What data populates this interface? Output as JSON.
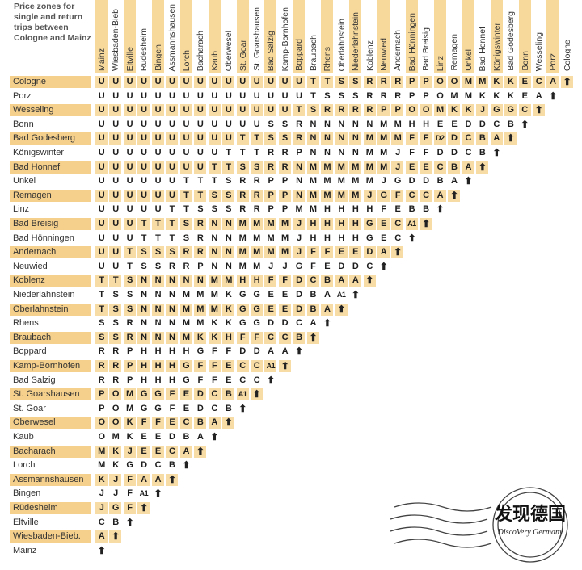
{
  "caption": "Price zones for single and return trips between Cologne and Mainz",
  "columns": [
    "Mainz",
    "Wiesbaden-Bieb",
    "Eltville",
    "Rüdesheim",
    "Bingen",
    "Assmannshausen",
    "Lorch",
    "Bacharach",
    "Kaub",
    "Oberwesel",
    "St. Goar",
    "St. Goarshausen",
    "Bad Salzig",
    "Kamp-Bornhofen",
    "Boppard",
    "Braubach",
    "Rhens",
    "Oberlahnstein",
    "Niederlahnstein",
    "Koblenz",
    "Neuwied",
    "Andernach",
    "Bad Hönningen",
    "Bad Breisig",
    "Linz",
    "Remagen",
    "Unkel",
    "Bad Honnef",
    "Königswinter",
    "Bad Godesberg",
    "Bonn",
    "Wesseling",
    "Porz",
    "Cologne"
  ],
  "terminal_icon": "arrow-up-icon",
  "colors": {
    "row_shade": "#f5d08c",
    "cell_shade": "#f8dca6",
    "column_shade": "#f7d99c"
  },
  "rows": [
    {
      "name": "Cologne",
      "zones": [
        "U",
        "U",
        "U",
        "U",
        "U",
        "U",
        "U",
        "U",
        "U",
        "U",
        "U",
        "U",
        "U",
        "U",
        "U",
        "T",
        "T",
        "S",
        "S",
        "R",
        "R",
        "R",
        "P",
        "P",
        "O",
        "O",
        "M",
        "M",
        "K",
        "K",
        "E",
        "C",
        "A"
      ]
    },
    {
      "name": "Porz",
      "zones": [
        "U",
        "U",
        "U",
        "U",
        "U",
        "U",
        "U",
        "U",
        "U",
        "U",
        "U",
        "U",
        "U",
        "U",
        "U",
        "T",
        "S",
        "S",
        "S",
        "R",
        "R",
        "R",
        "P",
        "P",
        "O",
        "M",
        "M",
        "K",
        "K",
        "K",
        "E",
        "A"
      ]
    },
    {
      "name": "Wesseling",
      "zones": [
        "U",
        "U",
        "U",
        "U",
        "U",
        "U",
        "U",
        "U",
        "U",
        "U",
        "U",
        "U",
        "U",
        "U",
        "T",
        "S",
        "R",
        "R",
        "R",
        "R",
        "P",
        "P",
        "O",
        "O",
        "M",
        "K",
        "K",
        "J",
        "G",
        "G",
        "C"
      ]
    },
    {
      "name": "Bonn",
      "zones": [
        "U",
        "U",
        "U",
        "U",
        "U",
        "U",
        "U",
        "U",
        "U",
        "U",
        "U",
        "U",
        "S",
        "S",
        "R",
        "N",
        "N",
        "N",
        "N",
        "N",
        "M",
        "M",
        "H",
        "H",
        "E",
        "E",
        "D",
        "D",
        "C",
        "B"
      ]
    },
    {
      "name": "Bad Godesberg",
      "zones": [
        "U",
        "U",
        "U",
        "U",
        "U",
        "U",
        "U",
        "U",
        "U",
        "U",
        "T",
        "T",
        "S",
        "S",
        "R",
        "N",
        "N",
        "N",
        "N",
        "M",
        "M",
        "M",
        "F",
        "F",
        "D2",
        "D",
        "C",
        "B",
        "A"
      ]
    },
    {
      "name": "Königswinter",
      "zones": [
        "U",
        "U",
        "U",
        "U",
        "U",
        "U",
        "U",
        "U",
        "U",
        "T",
        "T",
        "T",
        "R",
        "R",
        "P",
        "N",
        "N",
        "N",
        "N",
        "M",
        "M",
        "J",
        "F",
        "F",
        "D",
        "D",
        "C",
        "B"
      ]
    },
    {
      "name": "Bad Honnef",
      "zones": [
        "U",
        "U",
        "U",
        "U",
        "U",
        "U",
        "U",
        "U",
        "T",
        "T",
        "S",
        "S",
        "R",
        "R",
        "N",
        "M",
        "M",
        "M",
        "M",
        "M",
        "M",
        "J",
        "E",
        "E",
        "C",
        "B",
        "A"
      ]
    },
    {
      "name": "Unkel",
      "zones": [
        "U",
        "U",
        "U",
        "U",
        "U",
        "U",
        "T",
        "T",
        "T",
        "S",
        "R",
        "R",
        "P",
        "P",
        "N",
        "M",
        "M",
        "M",
        "M",
        "M",
        "J",
        "G",
        "D",
        "D",
        "B",
        "A"
      ]
    },
    {
      "name": "Remagen",
      "zones": [
        "U",
        "U",
        "U",
        "U",
        "U",
        "U",
        "T",
        "T",
        "S",
        "S",
        "R",
        "R",
        "P",
        "P",
        "N",
        "M",
        "M",
        "M",
        "M",
        "J",
        "G",
        "F",
        "C",
        "C",
        "A"
      ]
    },
    {
      "name": "Linz",
      "zones": [
        "U",
        "U",
        "U",
        "U",
        "U",
        "T",
        "T",
        "S",
        "S",
        "S",
        "R",
        "R",
        "P",
        "P",
        "M",
        "M",
        "H",
        "H",
        "H",
        "H",
        "F",
        "E",
        "B",
        "B"
      ]
    },
    {
      "name": "Bad Breisig",
      "zones": [
        "U",
        "U",
        "U",
        "T",
        "T",
        "T",
        "S",
        "R",
        "N",
        "N",
        "M",
        "M",
        "M",
        "M",
        "J",
        "H",
        "H",
        "H",
        "H",
        "G",
        "E",
        "C",
        "A1"
      ]
    },
    {
      "name": "Bad Hönningen",
      "zones": [
        "U",
        "U",
        "U",
        "T",
        "T",
        "T",
        "S",
        "R",
        "N",
        "N",
        "M",
        "M",
        "M",
        "M",
        "J",
        "H",
        "H",
        "H",
        "H",
        "G",
        "E",
        "C"
      ]
    },
    {
      "name": "Andernach",
      "zones": [
        "U",
        "U",
        "T",
        "S",
        "S",
        "S",
        "R",
        "R",
        "N",
        "N",
        "M",
        "M",
        "M",
        "M",
        "J",
        "F",
        "F",
        "E",
        "E",
        "D",
        "A"
      ]
    },
    {
      "name": "Neuwied",
      "zones": [
        "U",
        "U",
        "T",
        "S",
        "S",
        "R",
        "R",
        "P",
        "N",
        "N",
        "M",
        "M",
        "J",
        "J",
        "G",
        "F",
        "E",
        "D",
        "D",
        "C"
      ]
    },
    {
      "name": "Koblenz",
      "zones": [
        "T",
        "T",
        "S",
        "N",
        "N",
        "N",
        "N",
        "N",
        "M",
        "M",
        "H",
        "H",
        "F",
        "F",
        "D",
        "C",
        "B",
        "A",
        "A"
      ]
    },
    {
      "name": "Niederlahnstein",
      "zones": [
        "T",
        "S",
        "S",
        "N",
        "N",
        "N",
        "M",
        "M",
        "M",
        "K",
        "G",
        "G",
        "E",
        "E",
        "D",
        "B",
        "A",
        "A1"
      ]
    },
    {
      "name": "Oberlahnstein",
      "zones": [
        "T",
        "S",
        "S",
        "N",
        "N",
        "N",
        "M",
        "M",
        "M",
        "K",
        "G",
        "G",
        "E",
        "E",
        "D",
        "B",
        "A"
      ]
    },
    {
      "name": "Rhens",
      "zones": [
        "S",
        "S",
        "R",
        "N",
        "N",
        "N",
        "M",
        "M",
        "K",
        "K",
        "G",
        "G",
        "D",
        "D",
        "C",
        "A"
      ]
    },
    {
      "name": "Braubach",
      "zones": [
        "S",
        "S",
        "R",
        "N",
        "N",
        "N",
        "M",
        "K",
        "K",
        "H",
        "F",
        "F",
        "C",
        "C",
        "B"
      ]
    },
    {
      "name": "Boppard",
      "zones": [
        "R",
        "R",
        "P",
        "H",
        "H",
        "H",
        "H",
        "G",
        "F",
        "F",
        "D",
        "D",
        "A",
        "A"
      ]
    },
    {
      "name": "Kamp-Bornhofen",
      "zones": [
        "R",
        "R",
        "P",
        "H",
        "H",
        "H",
        "G",
        "F",
        "F",
        "E",
        "C",
        "C",
        "A1"
      ]
    },
    {
      "name": "Bad Salzig",
      "zones": [
        "R",
        "R",
        "P",
        "H",
        "H",
        "H",
        "G",
        "F",
        "F",
        "E",
        "C",
        "C"
      ]
    },
    {
      "name": "St. Goarshausen",
      "zones": [
        "P",
        "O",
        "M",
        "G",
        "G",
        "F",
        "E",
        "D",
        "C",
        "B",
        "A1"
      ]
    },
    {
      "name": "St. Goar",
      "zones": [
        "P",
        "O",
        "M",
        "G",
        "G",
        "F",
        "E",
        "D",
        "C",
        "B"
      ]
    },
    {
      "name": "Oberwesel",
      "zones": [
        "O",
        "O",
        "K",
        "F",
        "F",
        "E",
        "C",
        "B",
        "A"
      ]
    },
    {
      "name": "Kaub",
      "zones": [
        "O",
        "M",
        "K",
        "E",
        "E",
        "D",
        "B",
        "A"
      ]
    },
    {
      "name": "Bacharach",
      "zones": [
        "M",
        "K",
        "J",
        "E",
        "E",
        "C",
        "A"
      ]
    },
    {
      "name": "Lorch",
      "zones": [
        "M",
        "K",
        "G",
        "D",
        "C",
        "B"
      ]
    },
    {
      "name": "Assmannshausen",
      "zones": [
        "K",
        "J",
        "F",
        "A",
        "A"
      ]
    },
    {
      "name": "Bingen",
      "zones": [
        "J",
        "J",
        "F",
        "A1"
      ]
    },
    {
      "name": "Rüdesheim",
      "zones": [
        "J",
        "G",
        "F"
      ]
    },
    {
      "name": "Eltville",
      "zones": [
        "C",
        "B"
      ]
    },
    {
      "name": "Wiesbaden-Bieb.",
      "zones": [
        "A"
      ]
    },
    {
      "name": "Mainz",
      "zones": []
    }
  ],
  "watermark": {
    "title": "发现德国",
    "subtitle": "DiscoVery Germany"
  }
}
